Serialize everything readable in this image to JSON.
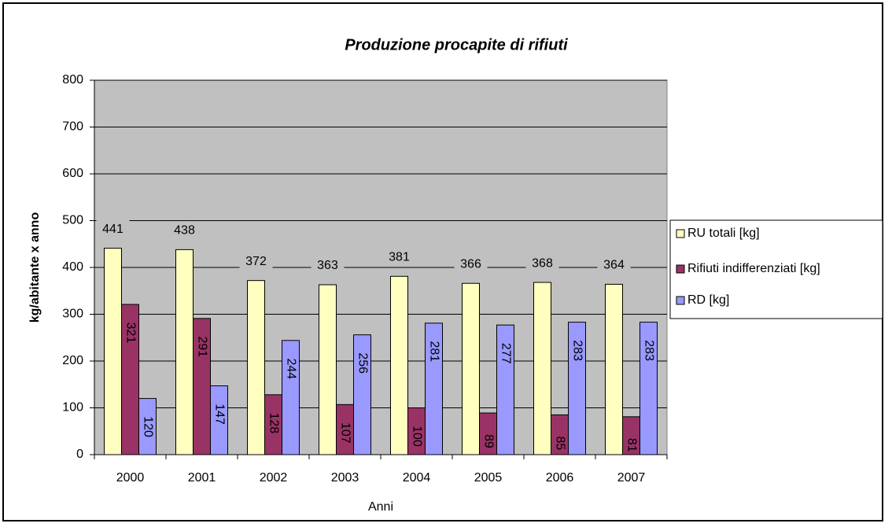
{
  "chart_data": {
    "type": "bar",
    "title": "Produzione procapite di rifiuti",
    "x_label": "Anni",
    "y_label": "kg/abitante x anno",
    "categories": [
      "2000",
      "2001",
      "2002",
      "2003",
      "2004",
      "2005",
      "2006",
      "2007"
    ],
    "series": [
      {
        "name": "RU totali [kg]",
        "color": "#ffffc0",
        "values": [
          441,
          438,
          372,
          363,
          381,
          366,
          368,
          364
        ]
      },
      {
        "name": "Rifiuti indifferenziati [kg]",
        "color": "#993366",
        "values": [
          321,
          291,
          128,
          107,
          100,
          89,
          85,
          81
        ]
      },
      {
        "name": "RD [kg]",
        "color": "#9999ff",
        "values": [
          120,
          147,
          244,
          256,
          281,
          277,
          283,
          283
        ]
      }
    ],
    "ylim": [
      0,
      800
    ],
    "yticks": [
      0,
      100,
      200,
      300,
      400,
      500,
      600,
      700,
      800
    ],
    "grid": true,
    "legend": "right",
    "plot_background": "#c0c0c0"
  }
}
